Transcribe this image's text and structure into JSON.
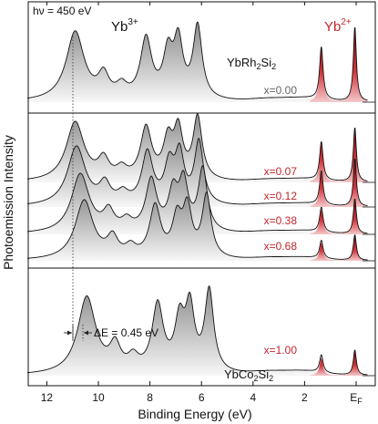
{
  "chart_data": {
    "type": "line",
    "photon_energy_label": "hν = 450 eV",
    "xlabel": "Binding Energy  (eV)",
    "ylabel": "Photoemission Intensity",
    "x_axis_reversed": true,
    "xlim": [
      13,
      -0.6
    ],
    "x_ticks": [
      {
        "value": 12,
        "label": "12"
      },
      {
        "value": 10,
        "label": "10"
      },
      {
        "value": 8,
        "label": "8"
      },
      {
        "value": 6,
        "label": "6"
      },
      {
        "value": 4,
        "label": "4"
      },
      {
        "value": 2,
        "label": "2"
      },
      {
        "value": 0,
        "label": "E"
      }
    ],
    "fermi_subscript": "F",
    "labels": {
      "yb3_base": "Yb",
      "yb3_sup": "3+",
      "yb2_base": "Yb",
      "yb2_sup": "2+",
      "top_compound": {
        "a": "YbRh",
        "sub1": "2",
        "b": "Si",
        "sub2": "2"
      },
      "bottom_compound": {
        "a": "YbCo",
        "sub1": "2",
        "b": "Si",
        "sub2": "2"
      },
      "delta_e": "ΔE = 0.45 eV"
    },
    "yb3_peaks": [
      10.9,
      9.8,
      9.1,
      8.15,
      7.3,
      6.9,
      6.15
    ],
    "yb2_peaks": [
      1.35,
      0.05
    ],
    "series": [
      {
        "x_label": "x=0.00",
        "x": 0.0,
        "panel": "top",
        "shift_ev": 0.0,
        "yb2_weight": 1.0
      },
      {
        "x_label": "x=0.07",
        "x": 0.07,
        "panel": "middle",
        "shift_ev": 0.0,
        "yb2_weight": 0.85
      },
      {
        "x_label": "x=0.12",
        "x": 0.12,
        "panel": "middle",
        "shift_ev": 0.05,
        "yb2_weight": 0.75
      },
      {
        "x_label": "x=0.38",
        "x": 0.38,
        "panel": "middle",
        "shift_ev": 0.2,
        "yb2_weight": 0.55
      },
      {
        "x_label": "x=0.68",
        "x": 0.68,
        "panel": "middle",
        "shift_ev": 0.35,
        "yb2_weight": 0.4
      },
      {
        "x_label": "x=1.00",
        "x": 1.0,
        "panel": "bottom",
        "shift_ev": 0.45,
        "yb2_weight": 0.3
      }
    ],
    "colors": {
      "yb2_accent": "#c0272d",
      "concentration_gray": "#666666",
      "concentration_red": "#c0272d",
      "curve": "#111111",
      "fill_light": "#f2f2f2",
      "fill_dark": "#a9a9a9"
    }
  }
}
